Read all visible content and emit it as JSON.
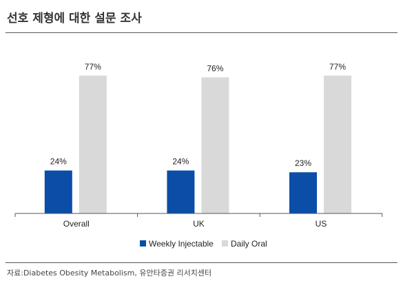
{
  "title": "선호 제형에 대한 설문 조사",
  "source": "자료:Diabetes Obesity Metabolism, 유안타증권 리서치센터",
  "colors": {
    "weekly": "#0a4ea8",
    "daily": "#d9d9d9",
    "axis": "#555555"
  },
  "chart_data": {
    "type": "bar",
    "categories": [
      "Overall",
      "UK",
      "US"
    ],
    "series": [
      {
        "name": "Weekly Injectable",
        "values": [
          24,
          24,
          23
        ],
        "labels": [
          "24%",
          "24%",
          "23%"
        ]
      },
      {
        "name": "Daily Oral",
        "values": [
          77,
          76,
          77
        ],
        "labels": [
          "77%",
          "76%",
          "77%"
        ]
      }
    ],
    "ylim": [
      0,
      100
    ],
    "grid": false,
    "legend": "bottom-center"
  }
}
